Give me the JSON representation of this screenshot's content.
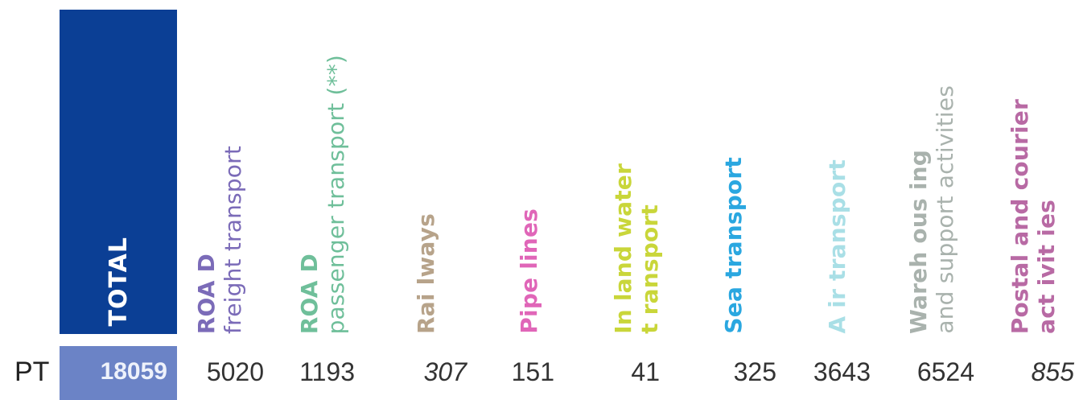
{
  "chart_data": {
    "type": "table",
    "columns": [
      {
        "title_lines": [
          "TOTAL"
        ],
        "color": "#ffffff",
        "bold": [
          true
        ]
      },
      {
        "title_lines": [
          "ROA D",
          "freight transport"
        ],
        "color": "#7b6bb8",
        "bold": [
          true,
          false
        ]
      },
      {
        "title_lines": [
          "ROA D",
          "passenger transport (**)"
        ],
        "color": "#6fbf9a",
        "bold": [
          true,
          false
        ]
      },
      {
        "title_lines": [
          "Rai lways"
        ],
        "color": "#b7a38a",
        "bold": [
          true
        ]
      },
      {
        "title_lines": [
          "Pipe lines"
        ],
        "color": "#e066b8",
        "bold": [
          true
        ]
      },
      {
        "title_lines": [
          "In land water",
          "t ransport"
        ],
        "color": "#c9d63a",
        "bold": [
          true,
          true
        ]
      },
      {
        "title_lines": [
          "Sea transport"
        ],
        "color": "#2aa7e0",
        "bold": [
          true
        ]
      },
      {
        "title_lines": [
          "A ir transport"
        ],
        "color": "#a9dfe6",
        "bold": [
          true
        ]
      },
      {
        "title_lines": [
          "Wareh ous ing",
          "and support activities"
        ],
        "color": "#a9b2ad",
        "bold": [
          true,
          false
        ]
      },
      {
        "title_lines": [
          "Postal and courier",
          "act ivit ies"
        ],
        "color": "#b86aa4",
        "bold": [
          true,
          true
        ]
      }
    ],
    "rows": [
      {
        "country": "PT",
        "values": [
          "18059",
          "5020",
          "1193",
          "307",
          "151",
          "41",
          "325",
          "3643",
          "6524",
          "855"
        ],
        "italic": [
          false,
          false,
          false,
          true,
          false,
          false,
          false,
          false,
          false,
          true
        ]
      }
    ]
  }
}
